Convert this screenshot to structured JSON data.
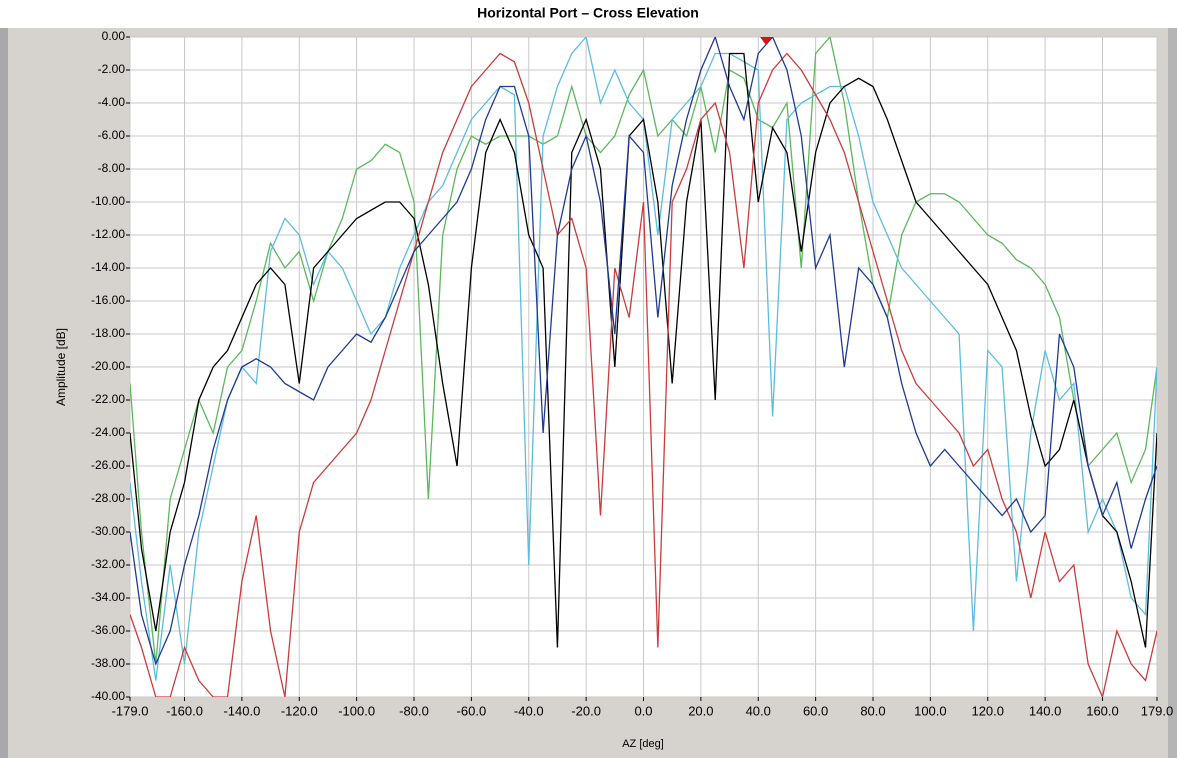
{
  "chart_data": {
    "type": "line",
    "title": "Horizontal Port – Cross Elevation",
    "xlabel": "AZ  [deg]",
    "ylabel": "Amplitude [dB]",
    "grid": true,
    "xlim": [
      -179,
      179
    ],
    "ylim": [
      -40,
      0
    ],
    "xticks": [
      {
        "value": -179,
        "label": "-179.0"
      },
      {
        "value": -160,
        "label": "-160.0"
      },
      {
        "value": -140,
        "label": "-140.0"
      },
      {
        "value": -120,
        "label": "-120.0"
      },
      {
        "value": -100,
        "label": "-100.0"
      },
      {
        "value": -80,
        "label": "-80.0"
      },
      {
        "value": -60,
        "label": "-60.0"
      },
      {
        "value": -40,
        "label": "-40.0"
      },
      {
        "value": -20,
        "label": "-20.0"
      },
      {
        "value": 0,
        "label": "0.0"
      },
      {
        "value": 20,
        "label": "20.0"
      },
      {
        "value": 40,
        "label": "40.0"
      },
      {
        "value": 60,
        "label": "60.0"
      },
      {
        "value": 80,
        "label": "80.0"
      },
      {
        "value": 100,
        "label": "100.0"
      },
      {
        "value": 120,
        "label": "120.0"
      },
      {
        "value": 140,
        "label": "140.0"
      },
      {
        "value": 160,
        "label": "160.0"
      },
      {
        "value": 179,
        "label": "179.0"
      }
    ],
    "yticks": [
      {
        "value": 0,
        "label": "0.00"
      },
      {
        "value": -2,
        "label": "-2.00"
      },
      {
        "value": -4,
        "label": "-4.00"
      },
      {
        "value": -6,
        "label": "-6.00"
      },
      {
        "value": -8,
        "label": "-8.00"
      },
      {
        "value": -10,
        "label": "-10.00"
      },
      {
        "value": -12,
        "label": "-12.00"
      },
      {
        "value": -14,
        "label": "-14.00"
      },
      {
        "value": -16,
        "label": "-16.00"
      },
      {
        "value": -18,
        "label": "-18.00"
      },
      {
        "value": -20,
        "label": "-20.00"
      },
      {
        "value": -22,
        "label": "-22.00"
      },
      {
        "value": -24,
        "label": "-24.00"
      },
      {
        "value": -26,
        "label": "-26.00"
      },
      {
        "value": -28,
        "label": "-28.00"
      },
      {
        "value": -30,
        "label": "-30.00"
      },
      {
        "value": -32,
        "label": "-32.00"
      },
      {
        "value": -34,
        "label": "-34.00"
      },
      {
        "value": -36,
        "label": "-36.00"
      },
      {
        "value": -38,
        "label": "-38.00"
      },
      {
        "value": -40,
        "label": "-40.00"
      }
    ],
    "x": [
      -179,
      -175,
      -170,
      -165,
      -160,
      -155,
      -150,
      -145,
      -140,
      -135,
      -130,
      -125,
      -120,
      -115,
      -110,
      -105,
      -100,
      -95,
      -90,
      -85,
      -80,
      -75,
      -70,
      -65,
      -60,
      -55,
      -50,
      -45,
      -40,
      -35,
      -30,
      -25,
      -20,
      -15,
      -10,
      -5,
      0,
      5,
      10,
      15,
      20,
      25,
      30,
      35,
      40,
      45,
      50,
      55,
      60,
      65,
      70,
      75,
      80,
      85,
      90,
      95,
      100,
      105,
      110,
      115,
      120,
      125,
      130,
      135,
      140,
      145,
      150,
      155,
      160,
      165,
      170,
      175,
      179
    ],
    "series": [
      {
        "color": "#5cb85c",
        "values": [
          -21,
          -30,
          -38,
          -28,
          -25,
          -22,
          -24,
          -20,
          -19,
          -16,
          -12.5,
          -14,
          -13,
          -16,
          -13,
          -11,
          -8,
          -7.5,
          -6.5,
          -7,
          -10,
          -28,
          -12,
          -8,
          -6,
          -6.5,
          -6,
          -6,
          -6,
          -6.5,
          -6,
          -3,
          -6,
          -7,
          -6,
          -3.5,
          -2,
          -6,
          -5,
          -6,
          -3,
          -7,
          -2,
          -2.5,
          -5,
          -5.5,
          -4,
          -14,
          -1,
          0,
          -4,
          -10,
          -15,
          -17,
          -12,
          -10,
          -9.5,
          -9.5,
          -10,
          -11,
          -12,
          -12.5,
          -13.5,
          -14,
          -15,
          -17,
          -22,
          -26,
          -25,
          -24,
          -27,
          -25,
          -20
        ]
      },
      {
        "color": "#5bbde0",
        "values": [
          -27,
          -33,
          -39,
          -32,
          -38,
          -30,
          -26,
          -22,
          -20,
          -21,
          -13,
          -11,
          -12,
          -15,
          -13,
          -14,
          -16,
          -18,
          -17,
          -14,
          -12,
          -10,
          -9,
          -7,
          -5,
          -4,
          -3,
          -3.5,
          -32,
          -6,
          -3,
          -1,
          0,
          -4,
          -2,
          -4,
          -5,
          -12,
          -5,
          -4,
          -3,
          -1,
          -1,
          -1.5,
          -2,
          -23,
          -5,
          -4,
          -3.5,
          -3,
          -3,
          -6,
          -10,
          -12,
          -14,
          -15,
          -16,
          -17,
          -18,
          -36,
          -19,
          -20,
          -33,
          -24,
          -19,
          -22,
          -21,
          -30,
          -28,
          -30,
          -34,
          -35,
          -20
        ]
      },
      {
        "color": "#000000",
        "values": [
          -24,
          -31,
          -36,
          -30,
          -27,
          -22,
          -20,
          -19,
          -17,
          -15,
          -14,
          -15,
          -21,
          -14,
          -13,
          -12,
          -11,
          -10.5,
          -10,
          -10,
          -11,
          -15,
          -21,
          -26,
          -14,
          -7,
          -5,
          -7,
          -12,
          -14,
          -37,
          -7,
          -5,
          -8,
          -20,
          -6,
          -5,
          -10,
          -21,
          -10,
          -5,
          -22,
          -1,
          -1,
          -10,
          -5.5,
          -7,
          -13,
          -7,
          -4,
          -3,
          -2.5,
          -3,
          -5,
          -7.5,
          -10,
          -11,
          -12,
          -13,
          -14,
          -15,
          -17,
          -19,
          -23,
          -26,
          -25,
          -22,
          -26,
          -29,
          -30,
          -33,
          -37,
          -24
        ]
      },
      {
        "color": "#cc3b3b",
        "values": [
          -35,
          -37,
          -40,
          -40,
          -37,
          -39,
          -40,
          -40,
          -33,
          -29,
          -36,
          -40,
          -30,
          -27,
          -26,
          -25,
          -24,
          -22,
          -19,
          -16,
          -13,
          -10,
          -7,
          -5,
          -3,
          -2,
          -1,
          -1.5,
          -4,
          -8,
          -12,
          -11,
          -14,
          -29,
          -14,
          -17,
          -10,
          -37,
          -10,
          -8,
          -5,
          -4,
          -7,
          -14,
          -4,
          -2,
          -1,
          -2,
          -3.5,
          -5,
          -7,
          -10,
          -13,
          -16,
          -19,
          -21,
          -22,
          -23,
          -24,
          -26,
          -25,
          -28,
          -30,
          -34,
          -30,
          -33,
          -32,
          -38,
          -40,
          -36,
          -38,
          -39,
          -36
        ]
      },
      {
        "color": "#1f3a93",
        "values": [
          -30,
          -35,
          -38,
          -36,
          -32,
          -29,
          -25,
          -22,
          -20,
          -19.5,
          -20,
          -21,
          -21.5,
          -22,
          -20,
          -19,
          -18,
          -18.5,
          -17,
          -15,
          -13,
          -12,
          -11,
          -10,
          -8,
          -5,
          -3,
          -3,
          -6,
          -24,
          -12,
          -8,
          -6,
          -10,
          -18,
          -6,
          -7,
          -17,
          -9,
          -5,
          -2,
          0,
          -3,
          -5,
          -1,
          0,
          -2,
          -6,
          -14,
          -12,
          -20,
          -14,
          -15,
          -17,
          -21,
          -24,
          -26,
          -25,
          -26,
          -27,
          -28,
          -29,
          -28,
          -30,
          -29,
          -18,
          -20,
          -26,
          -29,
          -27,
          -31,
          -28,
          -26
        ]
      }
    ]
  }
}
